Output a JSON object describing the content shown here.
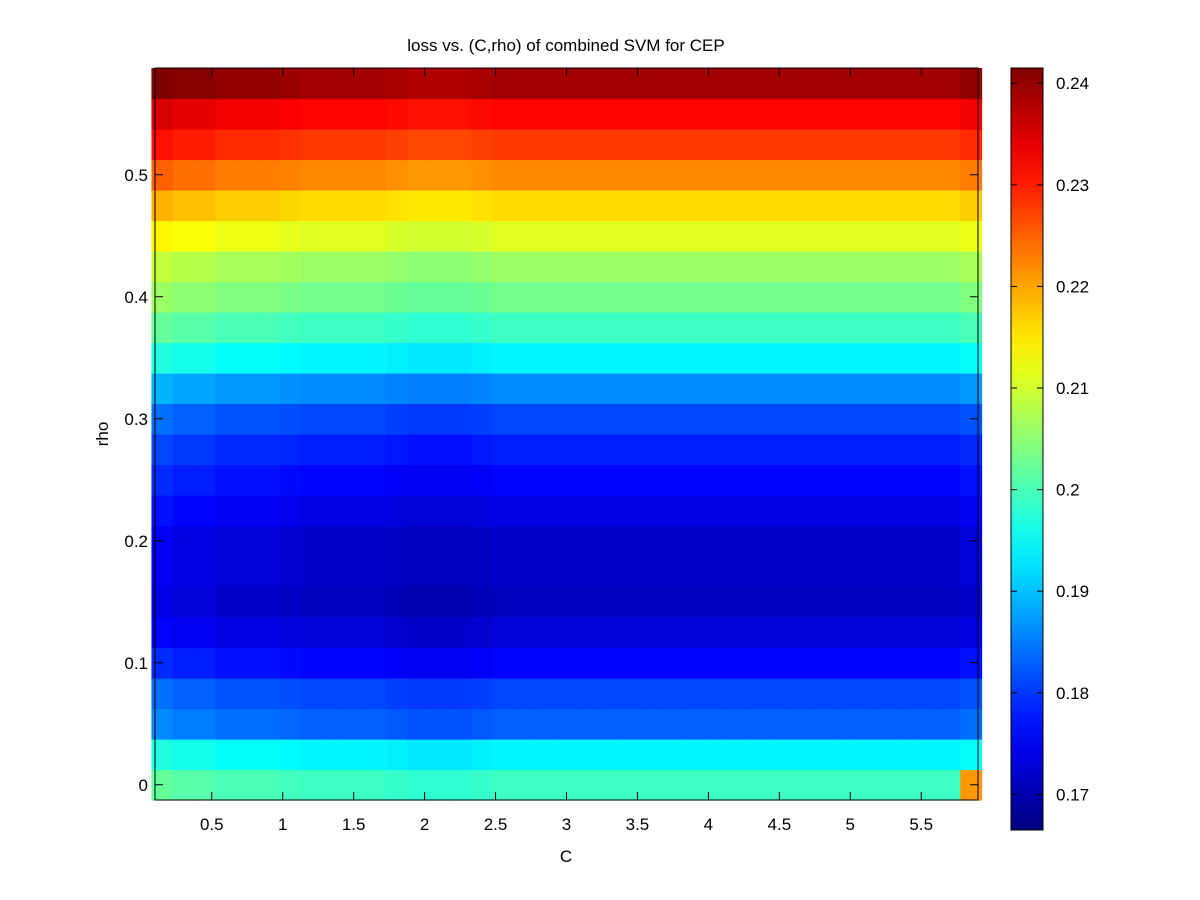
{
  "chart_data": {
    "type": "heatmap",
    "title": "loss vs. (C,rho) of combined SVM for CEP",
    "xlabel": "C",
    "ylabel": "rho",
    "xlim": [
      0.1,
      5.9
    ],
    "ylim": [
      -0.0125,
      0.5875
    ],
    "x_ticks": [
      0.5,
      1,
      1.5,
      2,
      2.5,
      3,
      3.5,
      4,
      4.5,
      5,
      5.5
    ],
    "x_tick_labels": [
      "0.5",
      "1",
      "1.5",
      "2",
      "2.5",
      "3",
      "3.5",
      "4",
      "4.5",
      "5",
      "5.5"
    ],
    "y_ticks": [
      0,
      0.1,
      0.2,
      0.3,
      0.4,
      0.5
    ],
    "y_tick_labels": [
      "0",
      "0.1",
      "0.2",
      "0.3",
      "0.4",
      "0.5"
    ],
    "x_centers": [
      0.15,
      0.3,
      0.45,
      0.6,
      0.75,
      0.9,
      1.05,
      1.2,
      1.35,
      1.5,
      1.65,
      1.8,
      1.95,
      2.1,
      2.25,
      2.4,
      2.55,
      2.7,
      2.85,
      3.0,
      3.15,
      3.3,
      3.45,
      3.6,
      3.75,
      3.9,
      4.05,
      4.2,
      4.35,
      4.5,
      4.65,
      4.8,
      4.95,
      5.1,
      5.25,
      5.4,
      5.55,
      5.7,
      5.85
    ],
    "y_centers": [
      0,
      0.025,
      0.05,
      0.075,
      0.1,
      0.125,
      0.15,
      0.175,
      0.2,
      0.225,
      0.25,
      0.275,
      0.3,
      0.325,
      0.35,
      0.375,
      0.4,
      0.425,
      0.45,
      0.475,
      0.5,
      0.525,
      0.55,
      0.575
    ],
    "row_profile": [
      0.199,
      0.194,
      0.183,
      0.181,
      0.176,
      0.173,
      0.171,
      0.172,
      0.172,
      0.174,
      0.176,
      0.178,
      0.181,
      0.186,
      0.194,
      0.199,
      0.203,
      0.206,
      0.211,
      0.216,
      0.222,
      0.228,
      0.232,
      0.239
    ],
    "col_offsets": [
      0.003,
      0.002,
      0.002,
      0.001,
      0.001,
      0.001,
      0.0005,
      0,
      0,
      0,
      0,
      -0.0005,
      -0.001,
      -0.001,
      -0.001,
      -0.0005,
      0,
      0,
      0,
      0,
      0,
      0,
      0,
      0,
      0,
      0,
      0,
      0,
      0,
      0,
      0,
      0,
      0,
      0,
      0,
      0,
      0,
      0,
      0.001
    ],
    "corner_cell": {
      "x": 5.85,
      "y": 0,
      "value": 0.221
    },
    "colorbar": {
      "colormap": "jet",
      "clim": [
        0.1665,
        0.2415
      ],
      "ticks": [
        0.17,
        0.18,
        0.19,
        0.2,
        0.21,
        0.22,
        0.23,
        0.24
      ],
      "tick_labels": [
        "0.17",
        "0.18",
        "0.19",
        "0.2",
        "0.21",
        "0.22",
        "0.23",
        "0.24"
      ]
    },
    "grid": false,
    "legend": "none"
  }
}
